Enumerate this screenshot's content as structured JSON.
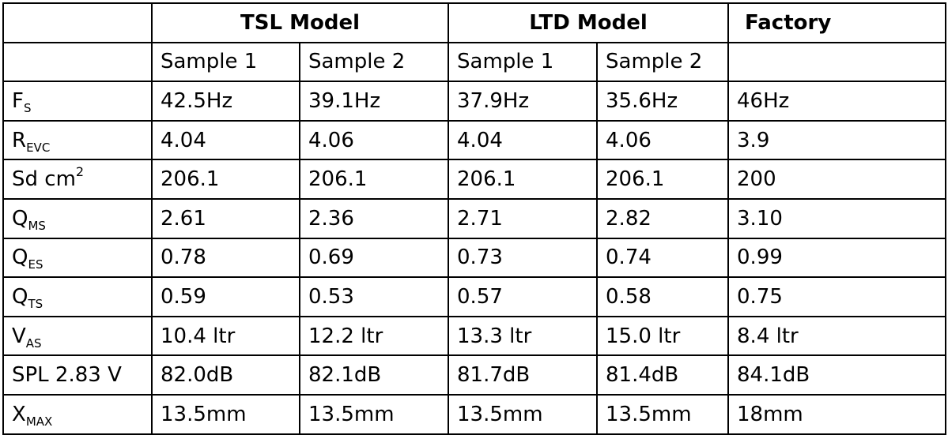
{
  "header": {
    "group1": "TSL Model",
    "group2": "LTD Model",
    "group3": "Factory",
    "sample_1": "Sample 1",
    "sample_2": "Sample 2"
  },
  "rows": [
    {
      "label_main": "F",
      "label_sub": "S",
      "values": [
        "42.5Hz",
        "39.1Hz",
        "37.9Hz",
        "35.6Hz",
        "46Hz"
      ]
    },
    {
      "label_main": "R",
      "label_sub": "EVC",
      "values": [
        "4.04",
        "4.06",
        "4.04",
        "4.06",
        "3.9"
      ]
    },
    {
      "label_main": "Sd cm",
      "label_sup": "2",
      "values": [
        "206.1",
        "206.1",
        "206.1",
        "206.1",
        "200"
      ]
    },
    {
      "label_main": "Q",
      "label_sub": "MS",
      "values": [
        "2.61",
        "2.36",
        "2.71",
        "2.82",
        "3.10"
      ]
    },
    {
      "label_main": "Q",
      "label_sub": "ES",
      "values": [
        "0.78",
        "0.69",
        "0.73",
        "0.74",
        "0.99"
      ]
    },
    {
      "label_main": "Q",
      "label_sub": "TS",
      "values": [
        "0.59",
        "0.53",
        "0.57",
        "0.58",
        "0.75"
      ]
    },
    {
      "label_main": "V",
      "label_sub": "AS",
      "values": [
        "10.4 ltr",
        "12.2 ltr",
        "13.3 ltr",
        "15.0 ltr",
        "8.4 ltr"
      ]
    },
    {
      "label_main": "SPL 2.83 V",
      "values": [
        "82.0dB",
        "82.1dB",
        "81.7dB",
        "81.4dB",
        "84.1dB"
      ]
    },
    {
      "label_main": "X",
      "label_sub": "MAX",
      "values": [
        "13.5mm",
        "13.5mm",
        "13.5mm",
        "13.5mm",
        "18mm"
      ]
    }
  ]
}
